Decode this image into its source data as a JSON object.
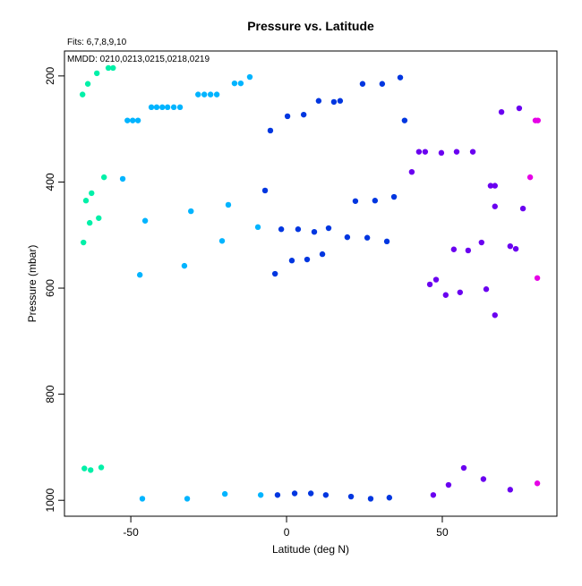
{
  "chart_data": {
    "type": "scatter",
    "title": "Pressure vs. Latitude",
    "subtitle": "Fits: 6,7,8,9,10",
    "annotation": "MMDD: 0210,0213,0215,0218,0219",
    "x_label": "Latitude (deg N)",
    "y_label": "Pressure (mbar)",
    "xlim": [
      -71.3,
      86.8
    ],
    "ylim": [
      1030,
      153
    ],
    "xticks": [
      -50,
      0,
      50
    ],
    "yticks": [
      200,
      400,
      600,
      800,
      1000
    ],
    "series": [
      {
        "color": "#00f0a8",
        "x": [
          -65.5,
          -63.8,
          -60.9,
          -57.2,
          -55.7,
          -64.4,
          -62.6,
          -63.2,
          -60.3,
          -58.6,
          -65.2,
          -64.9,
          -62.9,
          -59.5
        ],
        "values": [
          235,
          215,
          195,
          185,
          185,
          435,
          421,
          477,
          468,
          391,
          514,
          940,
          943,
          938
        ]
      },
      {
        "color": "#00b4ff",
        "x": [
          -52.6,
          -51.1,
          -49.4,
          -47.7,
          -43.4,
          -41.7,
          -39.9,
          -38.2,
          -36.2,
          -34.2,
          -28.4,
          -26.4,
          -24.4,
          -22.4,
          -16.7,
          -14.7,
          -11.8,
          -45.4,
          -47.1,
          -30.7,
          -32.8,
          -18.7,
          -20.7,
          -9.2,
          -46.3,
          -31.9,
          -19.8,
          -8.3
        ],
        "values": [
          394,
          284,
          284,
          284,
          259,
          259,
          259,
          259,
          259,
          259,
          235,
          235,
          235,
          235,
          214,
          214,
          202,
          473,
          575,
          455,
          558,
          443,
          511,
          485,
          997,
          997,
          988,
          990
        ]
      },
      {
        "color": "#0036e0",
        "x": [
          -5.2,
          0.3,
          5.5,
          10.3,
          15.2,
          17.2,
          24.4,
          30.7,
          36.5,
          37.9,
          -6.9,
          -1.7,
          3.7,
          8.9,
          13.5,
          19.5,
          25.9,
          32.2,
          22.1,
          28.4,
          34.5,
          -3.7,
          1.7,
          6.6,
          11.5,
          -2.9,
          2.6,
          7.8,
          12.6,
          20.7,
          27.0,
          33.0
        ],
        "values": [
          303,
          276,
          273,
          247,
          249,
          247,
          215,
          215,
          203,
          284,
          416,
          489,
          489,
          494,
          487,
          504,
          505,
          512,
          436,
          435,
          428,
          573,
          548,
          546,
          536,
          990,
          987,
          987,
          990,
          993,
          997,
          995
        ]
      },
      {
        "color": "#6a00f0",
        "x": [
          40.2,
          42.5,
          44.5,
          49.7,
          54.6,
          59.8,
          69.0,
          74.7,
          65.5,
          66.9,
          66.9,
          75.9,
          48.0,
          46.0,
          51.1,
          55.7,
          64.1,
          66.9,
          53.7,
          58.3,
          62.6,
          71.8,
          73.6,
          47.1,
          52.0,
          56.9,
          63.2,
          71.8
        ],
        "values": [
          381,
          343,
          343,
          345,
          343,
          343,
          268,
          261,
          407,
          407,
          446,
          450,
          584,
          593,
          613,
          608,
          602,
          651,
          527,
          529,
          514,
          521,
          526,
          990,
          971,
          939,
          960,
          980
        ]
      },
      {
        "color": "#e600e6",
        "x": [
          79.9,
          80.7,
          78.2,
          80.5,
          80.5
        ],
        "values": [
          284,
          284,
          391,
          581,
          968
        ]
      }
    ]
  }
}
